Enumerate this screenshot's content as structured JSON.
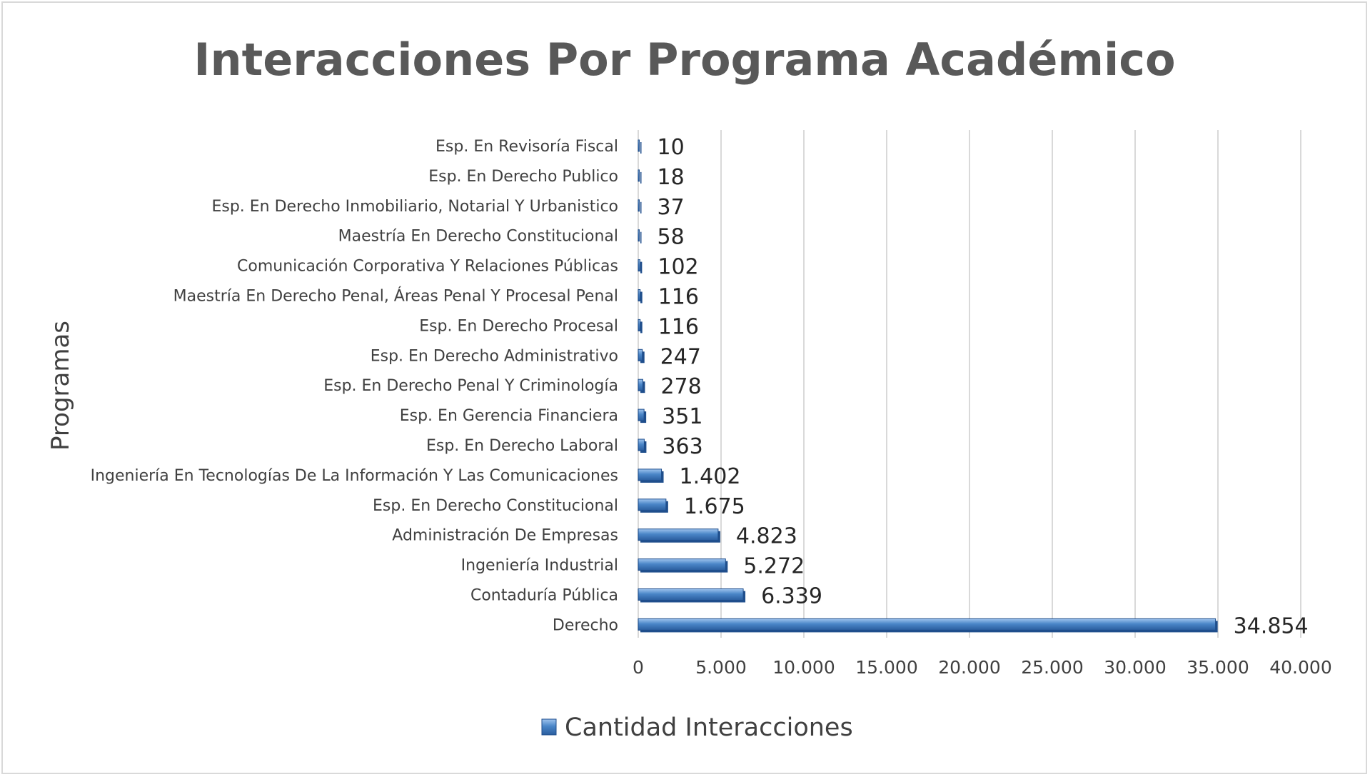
{
  "chart_data": {
    "type": "bar",
    "orientation": "horizontal",
    "title": "Interacciones Por Programa Académico",
    "ylabel": "Programas",
    "xlabel": "",
    "xlim": [
      0,
      40000
    ],
    "x_ticks": [
      0,
      5000,
      10000,
      15000,
      20000,
      25000,
      30000,
      35000,
      40000
    ],
    "x_tick_labels": [
      "0",
      "5.000",
      "10.000",
      "15.000",
      "20.000",
      "25.000",
      "30.000",
      "35.000",
      "40.000"
    ],
    "grid": "vertical",
    "legend_position": "bottom",
    "series": [
      {
        "name": "Cantidad Interacciones",
        "color": "#4a86c8",
        "categories": [
          "Esp. En Revisoría Fiscal",
          "Esp. En Derecho Publico",
          "Esp. En Derecho Inmobiliario, Notarial Y Urbanistico",
          "Maestría En Derecho Constitucional",
          "Comunicación Corporativa Y Relaciones Públicas",
          "Maestría En Derecho Penal, Áreas Penal Y Procesal Penal",
          "Esp. En Derecho Procesal",
          "Esp. En Derecho Administrativo",
          "Esp. En Derecho Penal Y Criminología",
          "Esp. En Gerencia Financiera",
          "Esp. En Derecho Laboral",
          "Ingeniería En Tecnologías De La Información Y Las Comunicaciones",
          "Esp. En Derecho Constitucional",
          "Administración De Empresas",
          "Ingeniería Industrial",
          "Contaduría Pública",
          "Derecho"
        ],
        "values": [
          10,
          18,
          37,
          58,
          102,
          116,
          116,
          247,
          278,
          351,
          363,
          1402,
          1675,
          4823,
          5272,
          6339,
          34854
        ],
        "value_labels": [
          "10",
          "18",
          "37",
          "58",
          "102",
          "116",
          "116",
          "247",
          "278",
          "351",
          "363",
          "1.402",
          "1.675",
          "4.823",
          "5.272",
          "6.339",
          "34.854"
        ]
      }
    ]
  }
}
